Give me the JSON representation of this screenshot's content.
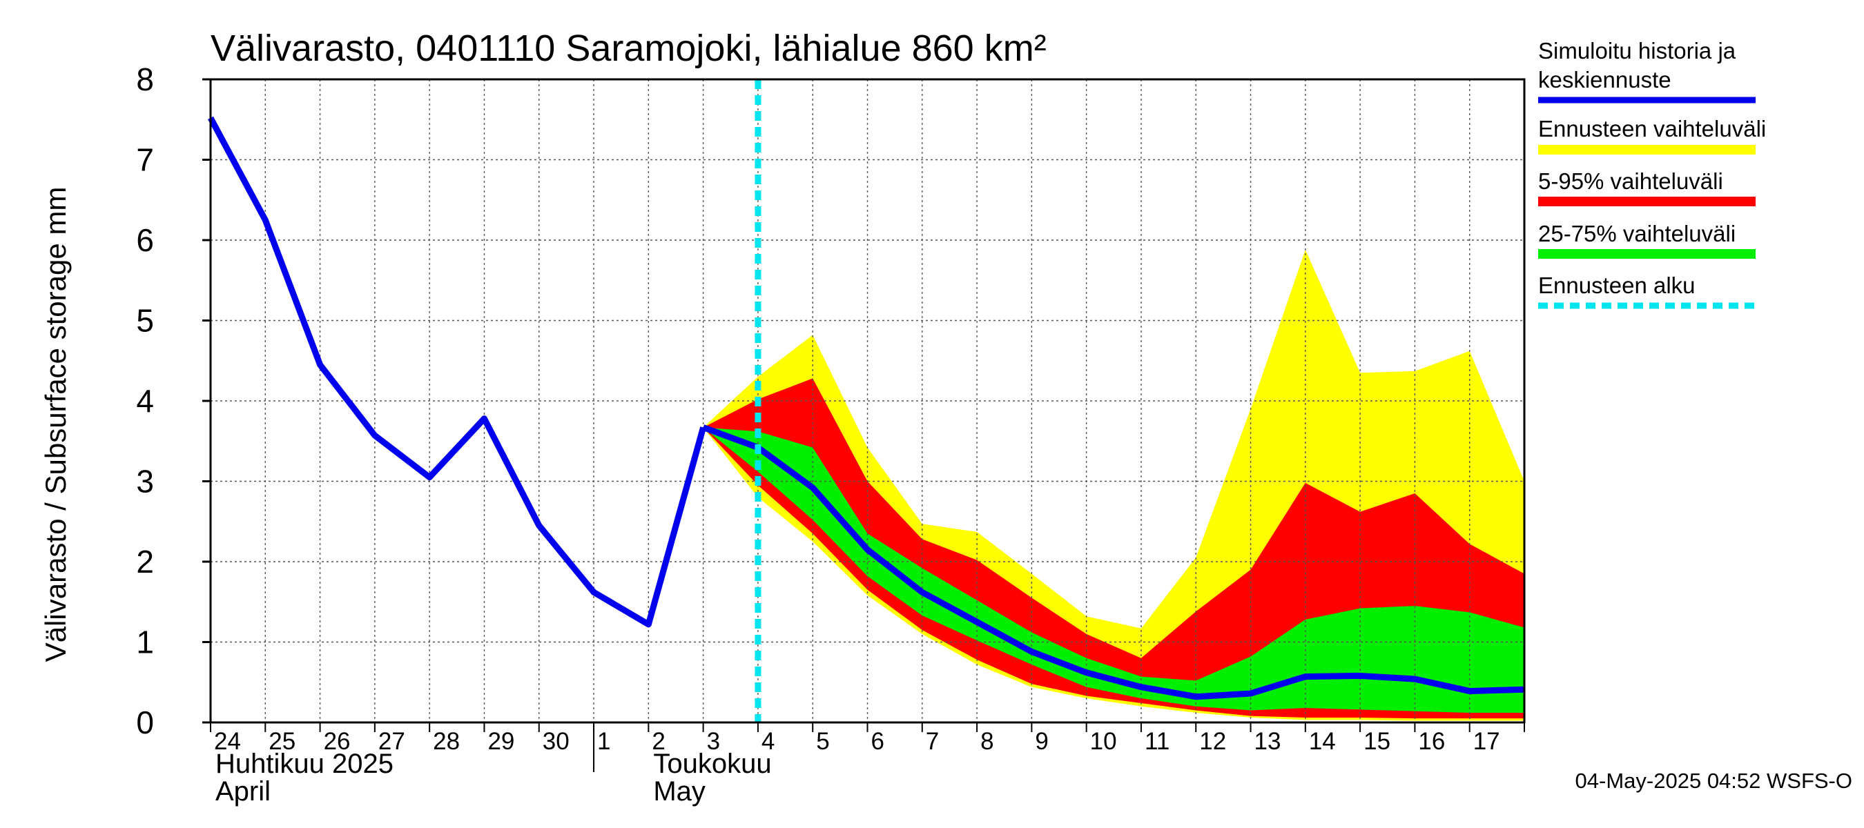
{
  "chart_data": {
    "type": "area",
    "title": "Välivarasto, 0401110 Saramojoki, lähialue 860 km²",
    "ylabel": "Välivarasto / Subsurface storage  mm",
    "ylim": [
      0,
      8
    ],
    "yticks": [
      "0",
      "1",
      "2",
      "3",
      "4",
      "5",
      "6",
      "7",
      "8"
    ],
    "xlim": [
      0,
      24
    ],
    "xticks": [
      "24",
      "25",
      "26",
      "27",
      "28",
      "29",
      "30",
      "1",
      "2",
      "3",
      "4",
      "5",
      "6",
      "7",
      "8",
      "9",
      "10",
      "11",
      "12",
      "13",
      "14",
      "15",
      "16",
      "17"
    ],
    "month_labels": [
      {
        "line1": "Huhtikuu  2025",
        "line2": "April",
        "at": 0
      },
      {
        "line1": "Toukokuu",
        "line2": "May",
        "at": 8
      }
    ],
    "month_boundary": 7,
    "grid": true,
    "forecast_start": 10.0,
    "history": {
      "x": [
        0,
        1,
        2,
        3,
        4,
        5,
        6,
        7,
        8,
        9
      ],
      "y": [
        7.52,
        6.25,
        4.45,
        3.57,
        3.05,
        3.78,
        2.45,
        1.62,
        1.22,
        3.67
      ]
    },
    "forecast_x": [
      9,
      10,
      11,
      12,
      13,
      14,
      15,
      16,
      17,
      18,
      19,
      20,
      21,
      22,
      23,
      24
    ],
    "median": [
      3.67,
      3.42,
      2.92,
      2.15,
      1.62,
      1.25,
      0.88,
      0.62,
      0.44,
      0.32,
      0.36,
      0.57,
      0.58,
      0.54,
      0.39,
      0.41
    ],
    "bands": [
      {
        "name": "Ennusteen vaihteluväli",
        "color": "#ffff00",
        "low": [
          3.67,
          2.8,
          2.25,
          1.58,
          1.1,
          0.72,
          0.44,
          0.3,
          0.2,
          0.12,
          0.06,
          0.03,
          0.03,
          0.02,
          0.02,
          0.02
        ],
        "high": [
          3.67,
          4.3,
          4.82,
          3.42,
          2.47,
          2.37,
          1.85,
          1.32,
          1.17,
          2.05,
          3.9,
          5.88,
          4.35,
          4.37,
          4.62,
          3.0
        ]
      },
      {
        "name": "5-95% vaihteluväli",
        "color": "#ff0000",
        "low": [
          3.67,
          2.95,
          2.35,
          1.65,
          1.15,
          0.78,
          0.48,
          0.33,
          0.24,
          0.15,
          0.08,
          0.06,
          0.06,
          0.05,
          0.05,
          0.05
        ],
        "high": [
          3.67,
          4.02,
          4.28,
          3.0,
          2.28,
          2.02,
          1.55,
          1.1,
          0.8,
          1.38,
          1.9,
          2.98,
          2.62,
          2.85,
          2.22,
          1.85
        ]
      },
      {
        "name": "25-75% vaihteluväli",
        "color": "#00ee00",
        "low": [
          3.67,
          3.12,
          2.52,
          1.82,
          1.33,
          1.02,
          0.72,
          0.44,
          0.3,
          0.2,
          0.15,
          0.18,
          0.16,
          0.14,
          0.12,
          0.12
        ],
        "high": [
          3.67,
          3.62,
          3.42,
          2.35,
          1.92,
          1.52,
          1.12,
          0.8,
          0.57,
          0.52,
          0.82,
          1.28,
          1.42,
          1.45,
          1.37,
          1.18
        ]
      }
    ],
    "series_colors": {
      "history": "#0000ee",
      "forecast_start": "#00e5ee"
    },
    "legend": {
      "placement": "right",
      "items": [
        {
          "label_lines": [
            "Simuloitu historia ja",
            "keskiennuste"
          ],
          "color": "#0000ee",
          "style": "solid"
        },
        {
          "label_lines": [
            "Ennusteen vaihteluväli"
          ],
          "color": "#ffff00",
          "style": "solid"
        },
        {
          "label_lines": [
            "5-95% vaihteluväli"
          ],
          "color": "#ff0000",
          "style": "solid"
        },
        {
          "label_lines": [
            "25-75% vaihteluväli"
          ],
          "color": "#00ee00",
          "style": "solid"
        },
        {
          "label_lines": [
            "Ennusteen alku"
          ],
          "color": "#00e5ee",
          "style": "dashed"
        }
      ]
    },
    "footer": "04-May-2025 04:52 WSFS-O"
  }
}
